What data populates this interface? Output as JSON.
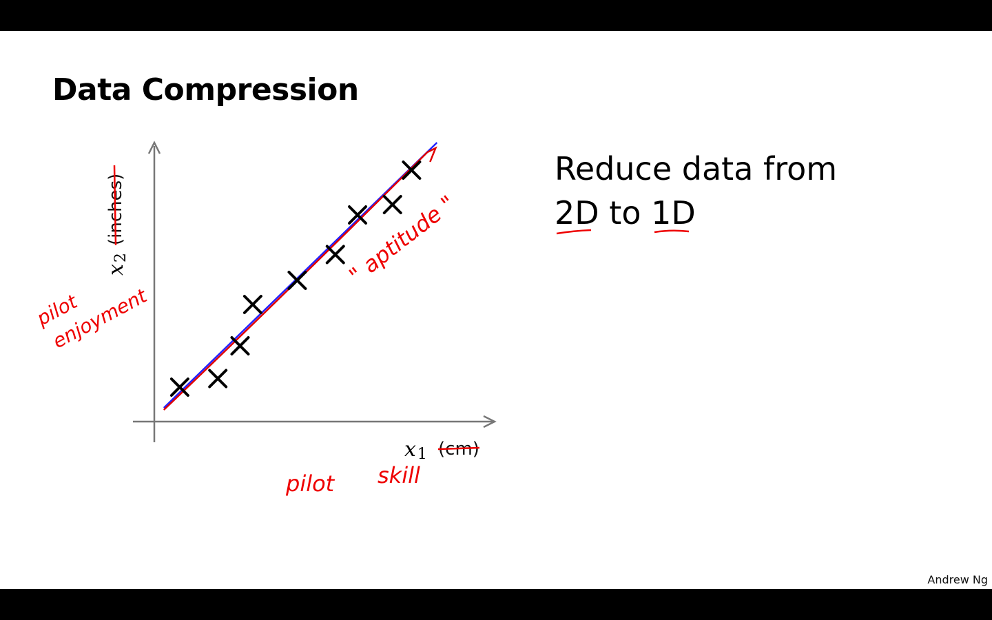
{
  "slide": {
    "title": "Data Compression",
    "right_text_line1": "Reduce data from",
    "right_text_line2": "2D to 1D",
    "author": "Andrew Ng"
  },
  "annotations": {
    "y_alt_label_line1": "pilot",
    "y_alt_label_line2": "enjoyment",
    "x_alt_label_line1": "pilot",
    "x_alt_label_line2": "skill",
    "line_label": "\" aptitude \""
  },
  "colors": {
    "ink": "#000000",
    "annotation": "#e00000",
    "fit_line": "#2222ff",
    "axis": "#777777"
  },
  "chart_data": {
    "type": "scatter",
    "title": "",
    "xlabel": "x1",
    "xlabel_base": "x",
    "xlabel_sub": "1",
    "xlabel_unit": "(cm)",
    "ylabel": "x2",
    "ylabel_base": "x",
    "ylabel_sub": "2",
    "ylabel_unit": "(inches)",
    "xlim": [
      0,
      10
    ],
    "ylim": [
      0,
      8
    ],
    "grid": false,
    "marker": "x",
    "points": [
      {
        "x": 0.8,
        "y": 1.0
      },
      {
        "x": 2.0,
        "y": 1.25
      },
      {
        "x": 2.7,
        "y": 2.2
      },
      {
        "x": 3.1,
        "y": 3.4
      },
      {
        "x": 4.5,
        "y": 4.1
      },
      {
        "x": 5.7,
        "y": 4.85
      },
      {
        "x": 6.4,
        "y": 6.0
      },
      {
        "x": 7.5,
        "y": 6.3
      },
      {
        "x": 8.1,
        "y": 7.3
      }
    ],
    "fit_line": {
      "x": [
        0.3,
        8.9
      ],
      "y": [
        0.4,
        8.1
      ]
    }
  }
}
